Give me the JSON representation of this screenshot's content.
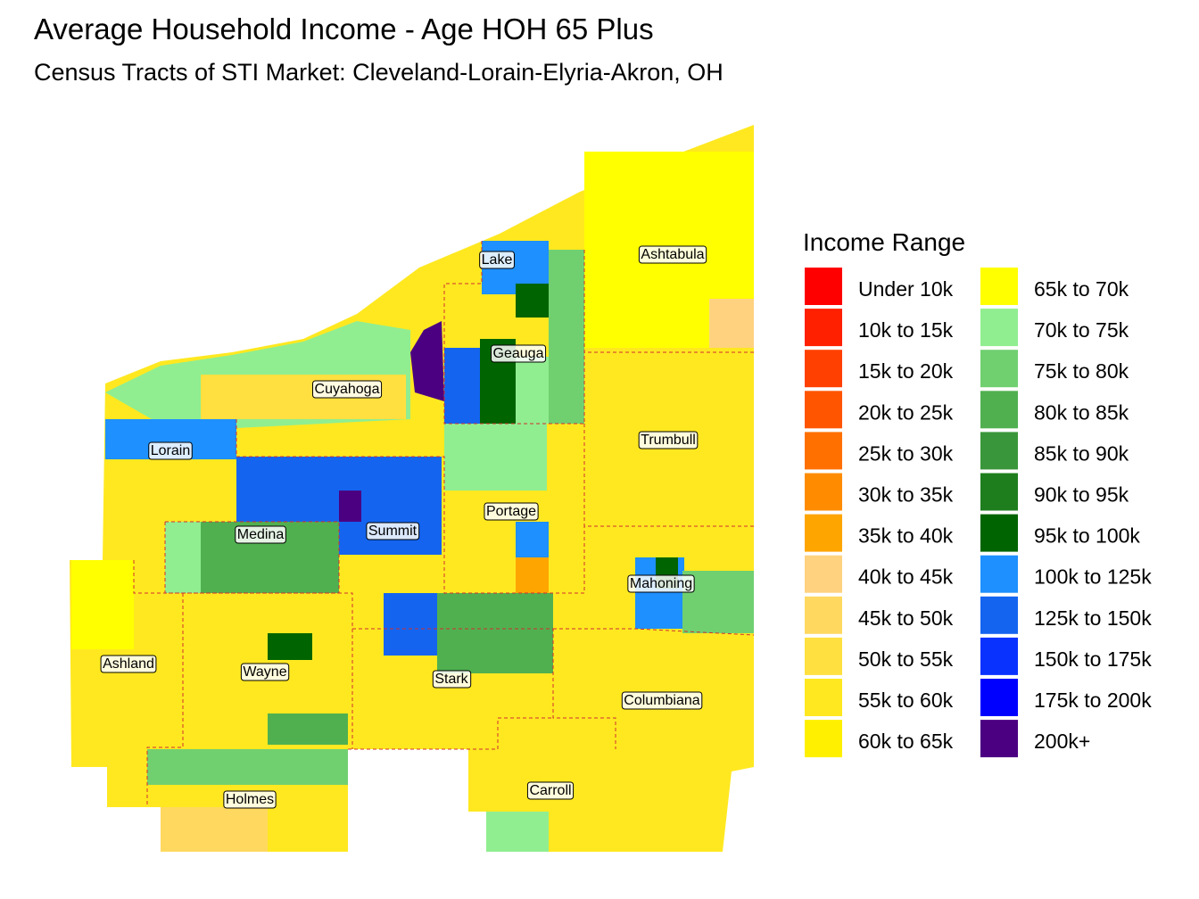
{
  "title": "Average Household Income - Age HOH 65 Plus",
  "subtitle": "Census Tracts of STI Market: Cleveland-Lorain-Elyria-Akron, OH",
  "legend": {
    "title": "Income Range",
    "items": [
      {
        "label": "Under 10k",
        "color": "#ff0000"
      },
      {
        "label": "10k to 15k",
        "color": "#ff2000"
      },
      {
        "label": "15k to 20k",
        "color": "#ff4000"
      },
      {
        "label": "20k to 25k",
        "color": "#ff5500"
      },
      {
        "label": "25k to 30k",
        "color": "#ff7000"
      },
      {
        "label": "30k to 35k",
        "color": "#ff8c00"
      },
      {
        "label": "35k to 40k",
        "color": "#ffa500"
      },
      {
        "label": "40k to 45k",
        "color": "#ffd280"
      },
      {
        "label": "45k to 50k",
        "color": "#ffd860"
      },
      {
        "label": "50k to 55k",
        "color": "#ffe040"
      },
      {
        "label": "55k to 60k",
        "color": "#ffe820"
      },
      {
        "label": "60k to 65k",
        "color": "#fff000"
      },
      {
        "label": "65k to 70k",
        "color": "#ffff00"
      },
      {
        "label": "70k to 75k",
        "color": "#90ee90"
      },
      {
        "label": "75k to 80k",
        "color": "#70d070"
      },
      {
        "label": "80k to 85k",
        "color": "#50b050"
      },
      {
        "label": "85k to 90k",
        "color": "#3a963a"
      },
      {
        "label": "90k to 95k",
        "color": "#1e7e1e"
      },
      {
        "label": "95k to 100k",
        "color": "#006400"
      },
      {
        "label": "100k to 125k",
        "color": "#1e90ff"
      },
      {
        "label": "125k to 150k",
        "color": "#1464f0"
      },
      {
        "label": "150k to 175k",
        "color": "#0a32ff"
      },
      {
        "label": "175k to 200k",
        "color": "#0000ff"
      },
      {
        "label": "200k+",
        "color": "#4b0082"
      }
    ]
  },
  "counties": [
    "Ashtabula",
    "Lake",
    "Geauga",
    "Cuyahoga",
    "Trumbull",
    "Lorain",
    "Portage",
    "Medina",
    "Summit",
    "Mahoning",
    "Ashland",
    "Wayne",
    "Stark",
    "Columbiana",
    "Carroll",
    "Holmes"
  ]
}
